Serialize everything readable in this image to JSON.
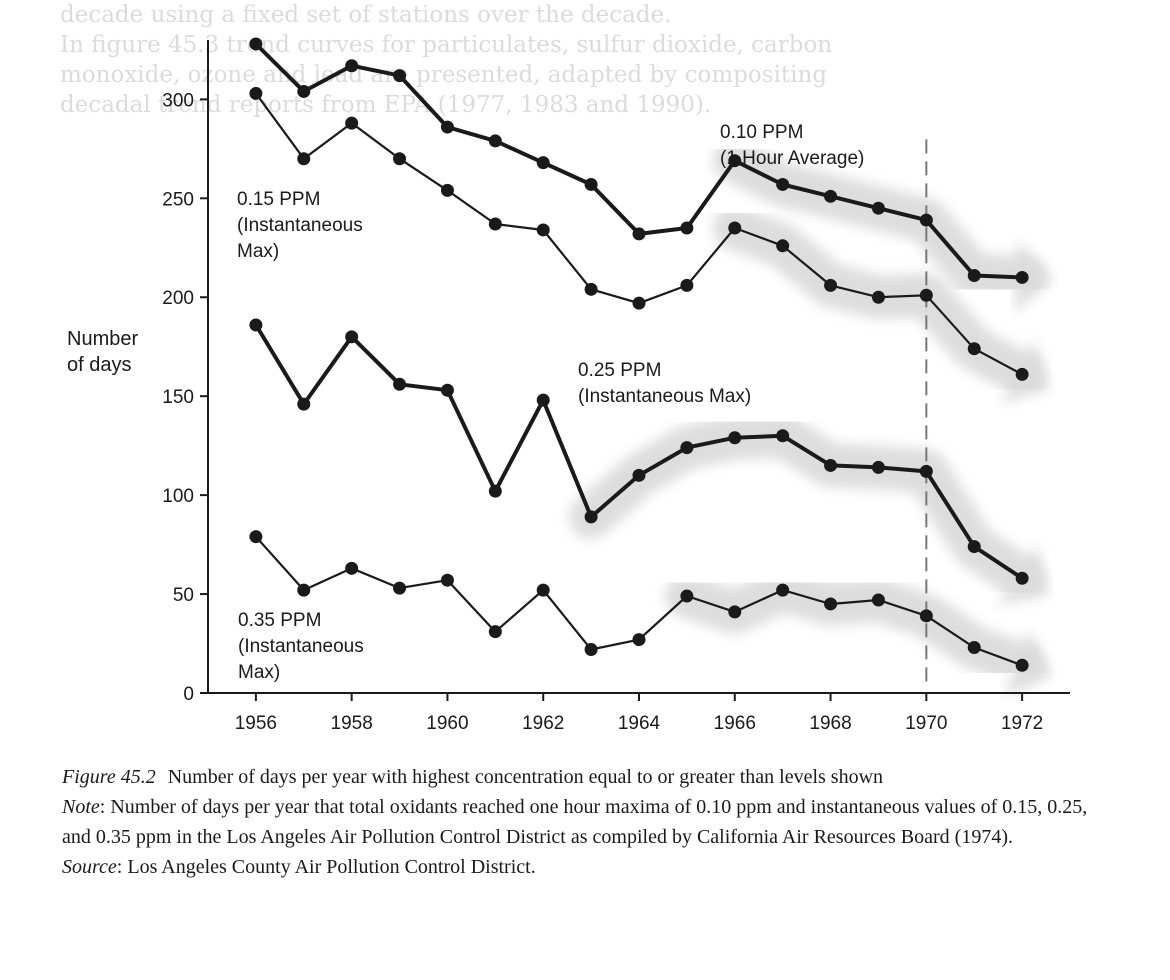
{
  "bleed_through": [
    "decade using a fixed set of stations over the decade.",
    "In figure 45.3 trend curves for particulates, sulfur dioxide, carbon",
    "monoxide, ozone and lead are presented, adapted by compositing",
    "decadal trend reports from EPA (1977, 1983 and 1990)."
  ],
  "caption": {
    "figure_label": "Figure 45.2",
    "figure_text": "Number of days per year with highest concentration equal to or greater than levels shown",
    "note_label": "Note",
    "note_text": "Number of days per year that total oxidants reached one hour maxima of 0.10 ppm and instantaneous values of 0.15, 0.25, and 0.35 ppm in the Los Angeles Air Pollution Control District as compiled by California Air Resources Board (1974).",
    "source_label": "Source",
    "source_text": "Los Angeles County Air Pollution Control District."
  },
  "chart_data": {
    "type": "line",
    "ylabel": [
      "Number",
      "of days"
    ],
    "xlabel": "",
    "xlim": [
      1955,
      1973
    ],
    "ylim": [
      0,
      330
    ],
    "x_ticks": [
      1956,
      1958,
      1960,
      1962,
      1964,
      1966,
      1968,
      1970,
      1972
    ],
    "y_ticks": [
      0,
      50,
      100,
      150,
      200,
      250,
      300
    ],
    "reference_line_x": 1970,
    "trend_band_color": "#dcdcdc",
    "line_color": "#1a1a1a",
    "series": [
      {
        "label_lines": [
          "0.10 PPM",
          "(1 Hour Average)"
        ],
        "x": [
          1956,
          1957,
          1958,
          1959,
          1960,
          1961,
          1962,
          1963,
          1964,
          1965,
          1966,
          1967,
          1968,
          1969,
          1970,
          1971,
          1972
        ],
        "values": [
          328,
          304,
          317,
          312,
          286,
          279,
          268,
          257,
          232,
          235,
          269,
          257,
          251,
          245,
          239,
          211,
          210
        ],
        "trend_from": 1966,
        "weight": "heavy"
      },
      {
        "label_lines": [
          "0.15 PPM",
          "(Instantaneous",
          "Max)"
        ],
        "x": [
          1956,
          1957,
          1958,
          1959,
          1960,
          1961,
          1962,
          1963,
          1964,
          1965,
          1966,
          1967,
          1968,
          1969,
          1970,
          1971,
          1972
        ],
        "values": [
          303,
          270,
          288,
          270,
          254,
          237,
          234,
          204,
          197,
          206,
          235,
          226,
          206,
          200,
          201,
          174,
          161
        ],
        "trend_from": 1966,
        "weight": "light"
      },
      {
        "label_lines": [
          "0.25 PPM",
          "(Instantaneous Max)"
        ],
        "x": [
          1956,
          1957,
          1958,
          1959,
          1960,
          1961,
          1962,
          1963,
          1964,
          1965,
          1966,
          1967,
          1968,
          1969,
          1970,
          1971,
          1972
        ],
        "values": [
          186,
          146,
          180,
          156,
          153,
          102,
          148,
          89,
          110,
          124,
          129,
          130,
          115,
          114,
          112,
          74,
          58
        ],
        "trend_from": 1963,
        "weight": "heavy"
      },
      {
        "label_lines": [
          "0.35 PPM",
          "(Instantaneous",
          "Max)"
        ],
        "x": [
          1956,
          1957,
          1958,
          1959,
          1960,
          1961,
          1962,
          1963,
          1964,
          1965,
          1966,
          1967,
          1968,
          1969,
          1970,
          1971,
          1972
        ],
        "values": [
          79,
          52,
          63,
          53,
          57,
          31,
          52,
          22,
          27,
          49,
          41,
          52,
          45,
          47,
          39,
          23,
          14
        ],
        "trend_from": 1965,
        "weight": "light"
      }
    ]
  }
}
